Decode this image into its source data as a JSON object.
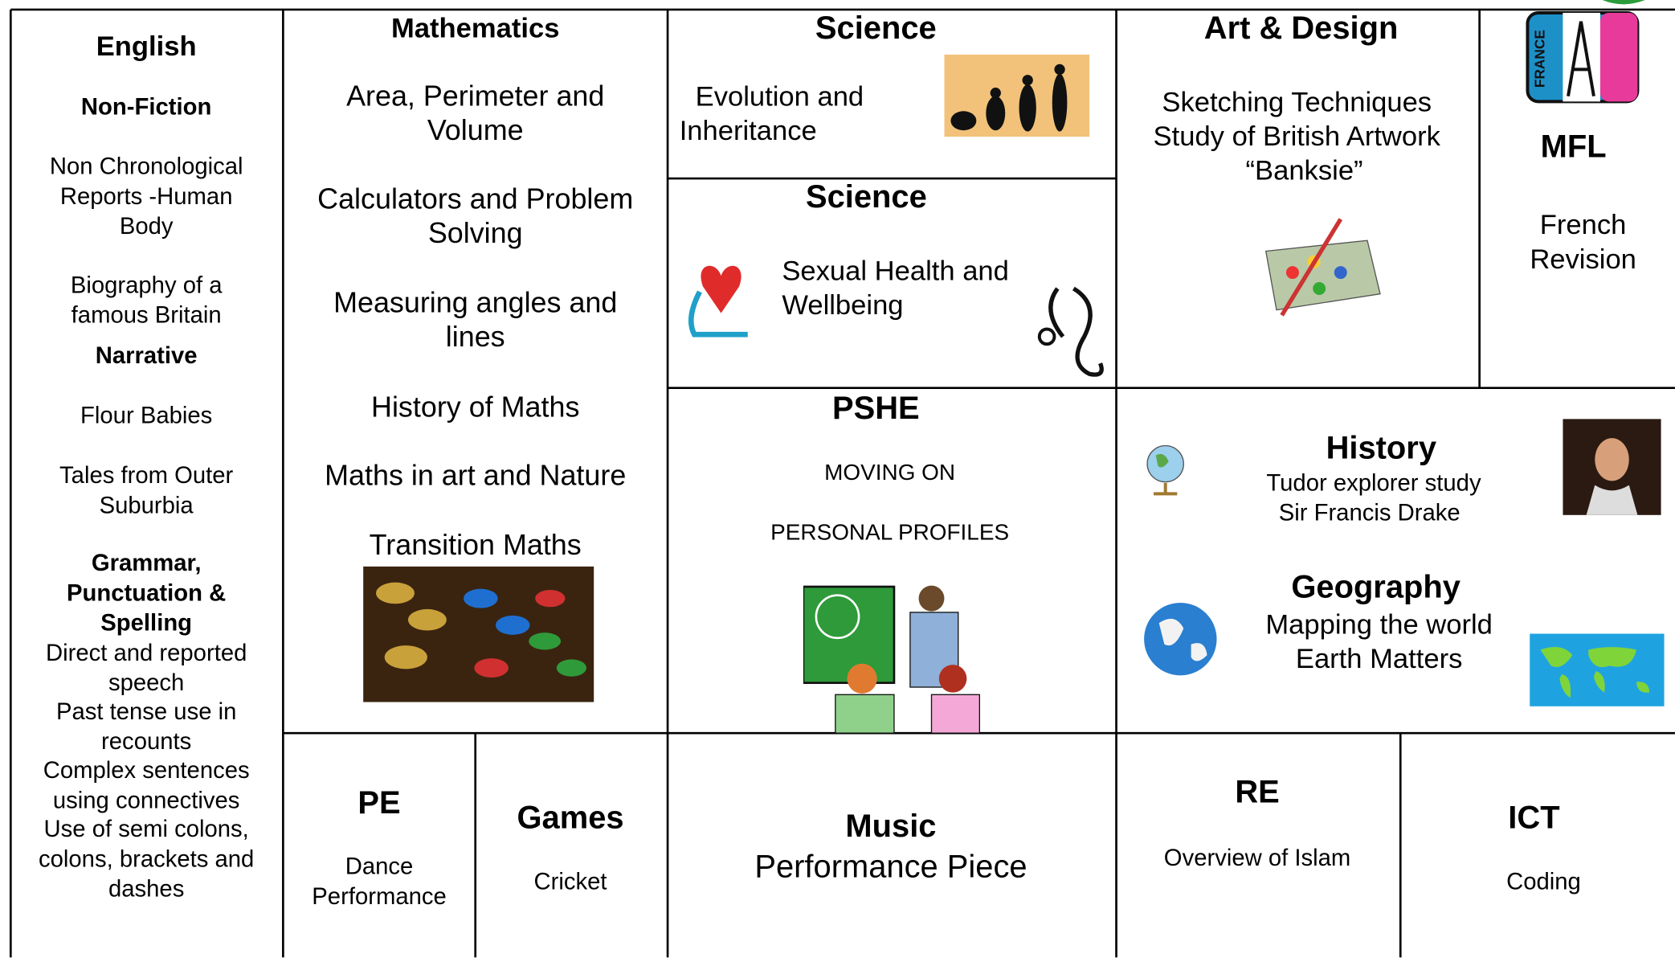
{
  "english": {
    "title": "English",
    "sections": [
      {
        "heading": "Non-Fiction",
        "items": [
          "Non Chronological Reports -Human Body",
          "Biography of a famous Britain"
        ]
      },
      {
        "heading": "Narrative",
        "items": [
          "Flour Babies",
          "Tales from Outer Suburbia"
        ]
      },
      {
        "heading": "Grammar, Punctuation & Spelling",
        "items": [
          "Direct and reported speech",
          "Past tense use in recounts",
          "Complex sentences using connectives",
          "Use of semi colons, colons, brackets and dashes"
        ]
      }
    ]
  },
  "mathematics": {
    "title": "Mathematics",
    "items": [
      "Area, Perimeter and Volume",
      "Calculators and Problem Solving",
      "Measuring angles and lines",
      "History of Maths",
      "Maths in art and Nature",
      "Transition Maths"
    ]
  },
  "science_1": {
    "title": "Science",
    "text": "Evolution and Inheritance"
  },
  "science_2": {
    "title": "Science",
    "text": "Sexual Health and Wellbeing"
  },
  "art_design": {
    "title": "Art & Design",
    "items": [
      "Sketching Techniques",
      "Study of British Artwork",
      "“Banksie”"
    ]
  },
  "mfl": {
    "badge": "FRANCE",
    "title": "MFL",
    "text": "French Revision"
  },
  "pshe": {
    "title": "PSHE",
    "items": [
      "MOVING ON",
      "PERSONAL PROFILES"
    ]
  },
  "history": {
    "title": "History",
    "items": [
      "Tudor explorer study",
      "Sir Francis Drake"
    ]
  },
  "geography": {
    "title": "Geography",
    "items": [
      "Mapping the world",
      "Earth Matters"
    ]
  },
  "pe": {
    "title": "PE",
    "text": "Dance Performance"
  },
  "games": {
    "title": "Games",
    "text": "Cricket"
  },
  "music": {
    "title": "Music",
    "text": "Performance Piece"
  },
  "re": {
    "title": "RE",
    "text": "Overview of Islam"
  },
  "ict": {
    "title": "ICT",
    "text": "Coding"
  }
}
